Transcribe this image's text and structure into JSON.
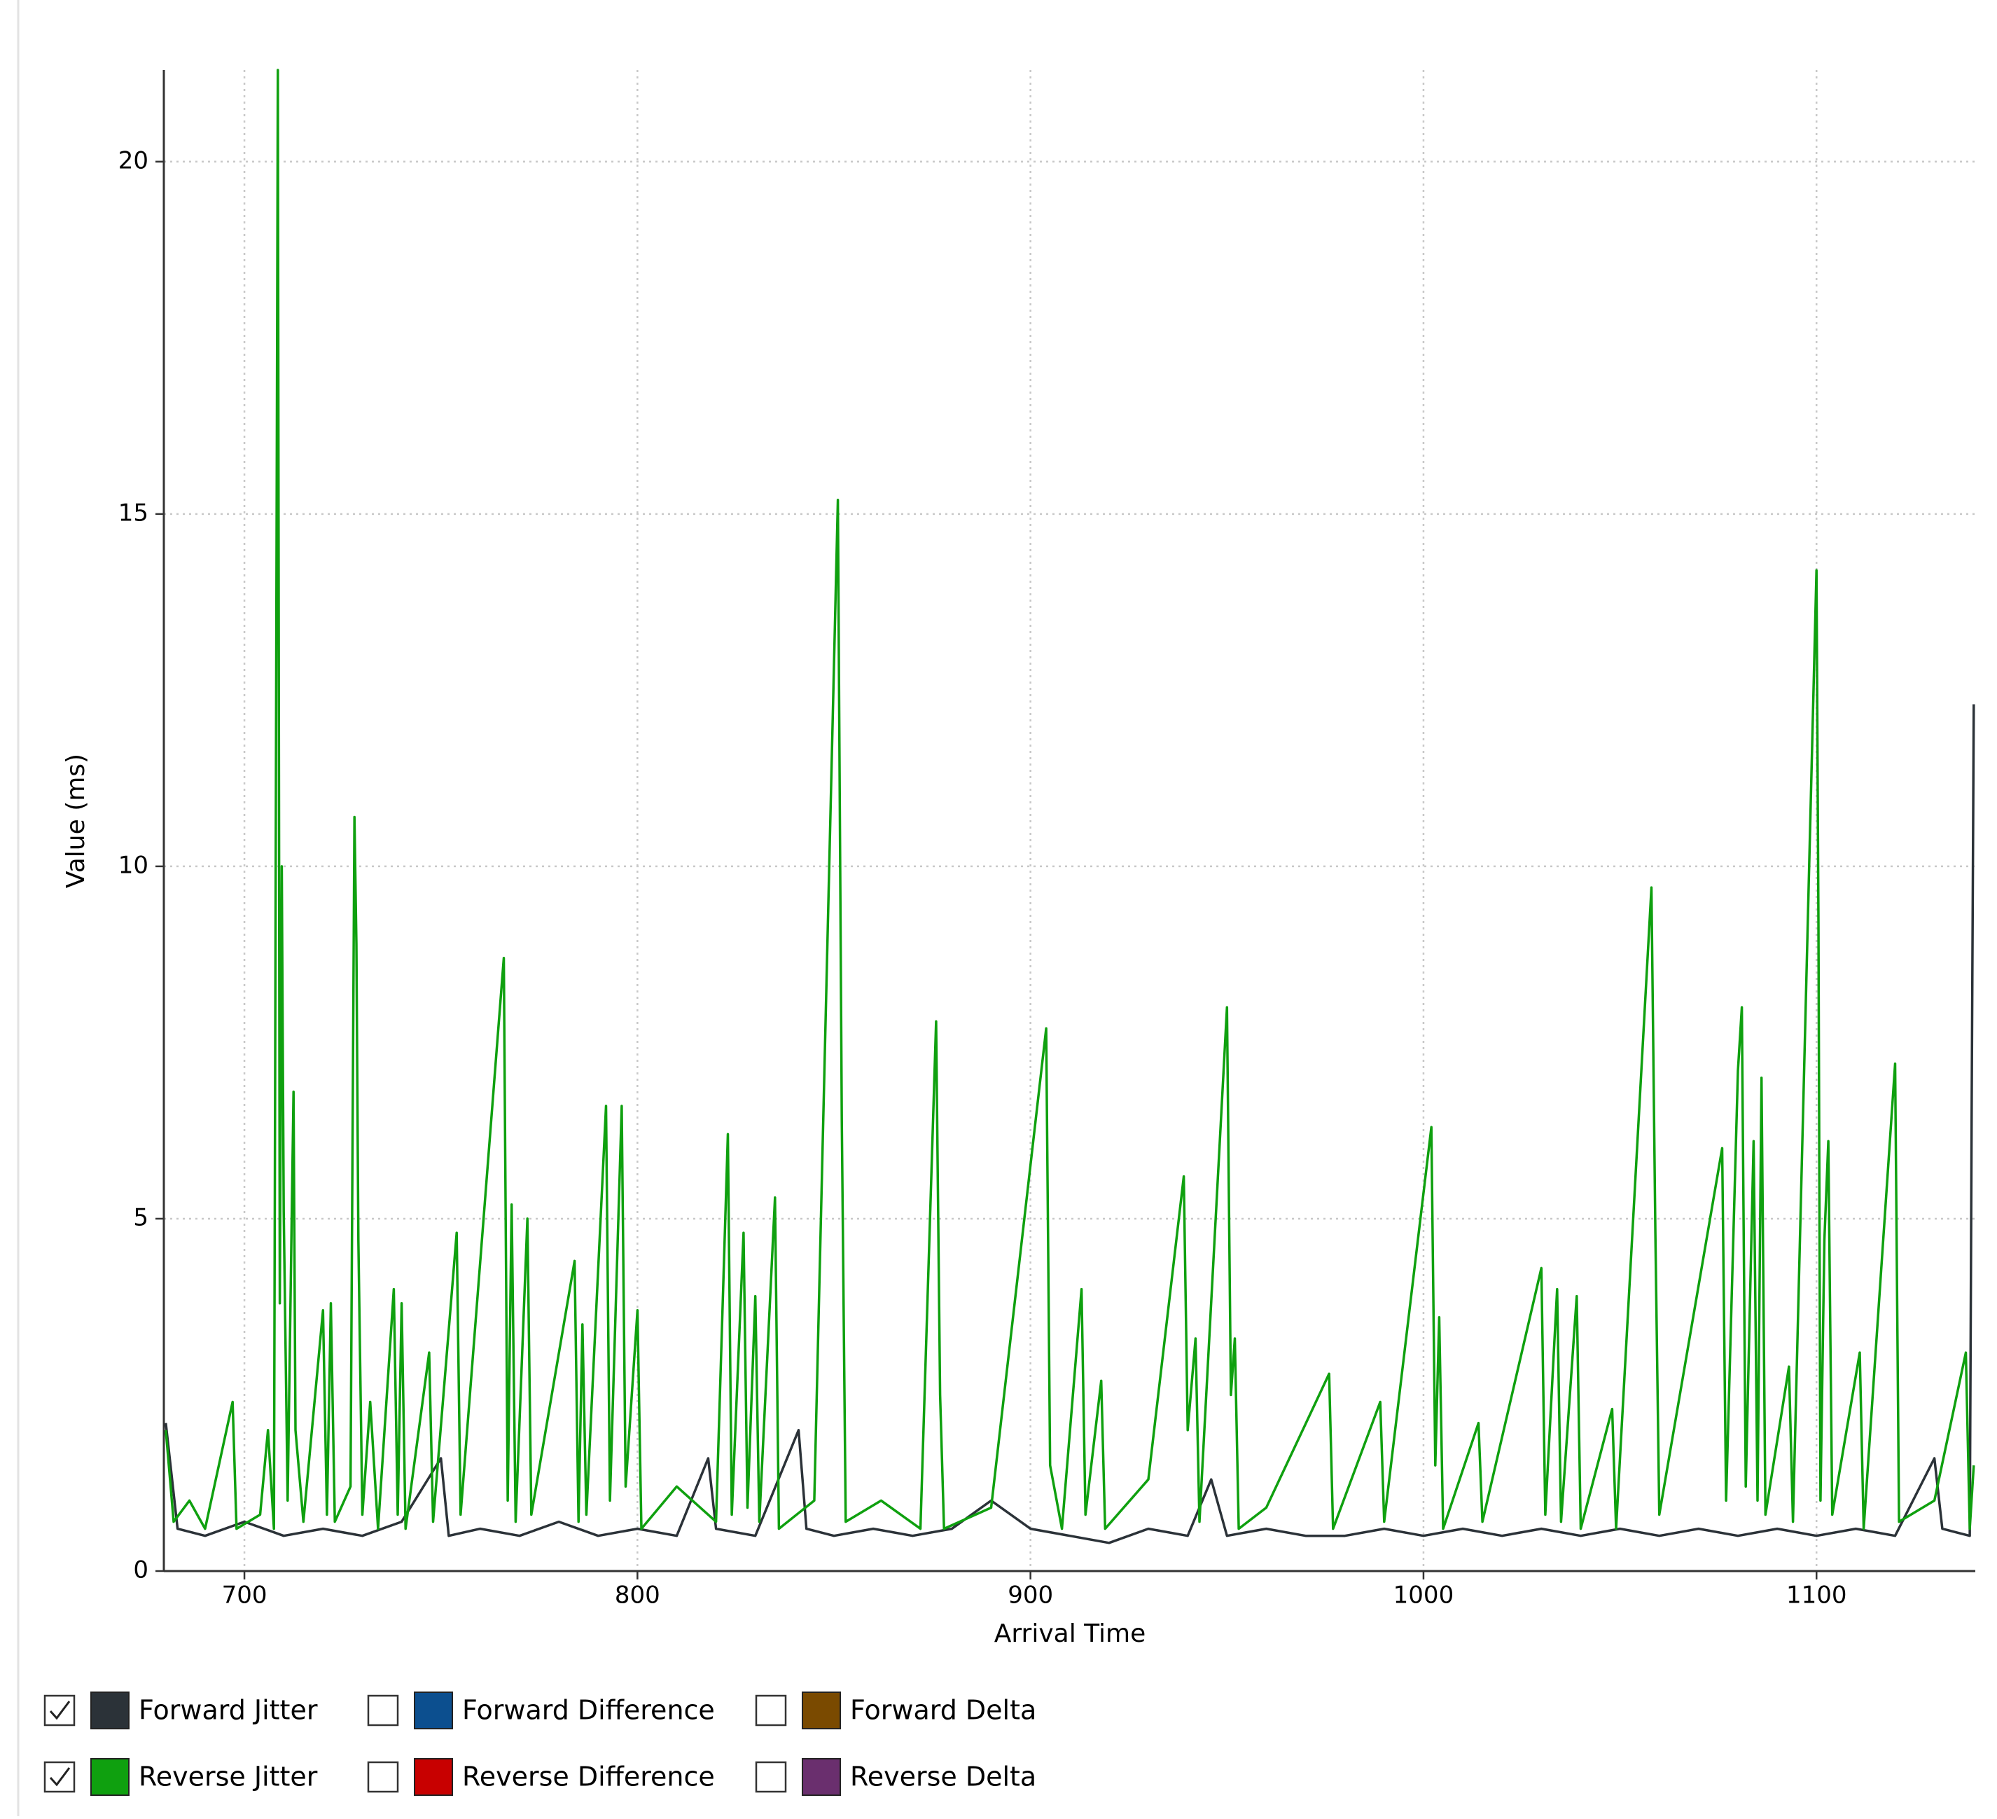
{
  "chart_data": {
    "type": "line",
    "x_label": "Arrival Time",
    "y_label": "Value (ms)",
    "xlim": [
      679.5,
      1140.4
    ],
    "ylim": [
      0,
      21.3
    ],
    "xticks": [
      700,
      800,
      900,
      1000,
      1100
    ],
    "yticks": [
      0,
      5,
      10,
      15,
      20
    ],
    "grid": true,
    "series": [
      {
        "name": "Forward Jitter",
        "color": "#2b3238",
        "checked": true,
        "x": [
          680,
          683,
          690,
          700,
          710,
          720,
          730,
          740,
          750,
          752,
          760,
          770,
          780,
          790,
          800,
          810,
          818,
          820,
          830,
          841,
          843,
          850,
          860,
          870,
          880,
          890,
          900,
          910,
          920,
          930,
          940,
          946,
          950,
          960,
          970,
          980,
          990,
          1000,
          1010,
          1020,
          1030,
          1040,
          1050,
          1060,
          1070,
          1080,
          1090,
          1100,
          1110,
          1120,
          1130,
          1132,
          1139,
          1139.5,
          1140
        ],
        "values": [
          2.1,
          0.6,
          0.5,
          0.7,
          0.5,
          0.6,
          0.5,
          0.7,
          1.6,
          0.5,
          0.6,
          0.5,
          0.7,
          0.5,
          0.6,
          0.5,
          1.6,
          0.6,
          0.5,
          2.0,
          0.6,
          0.5,
          0.6,
          0.5,
          0.6,
          1.0,
          0.6,
          0.5,
          0.4,
          0.6,
          0.5,
          1.3,
          0.5,
          0.6,
          0.5,
          0.5,
          0.6,
          0.5,
          0.6,
          0.5,
          0.6,
          0.5,
          0.6,
          0.5,
          0.6,
          0.5,
          0.6,
          0.5,
          0.6,
          0.5,
          1.6,
          0.6,
          0.5,
          6.7,
          12.3
        ]
      },
      {
        "name": "Reverse Jitter",
        "color": "#0fa00f",
        "checked": true,
        "x": [
          680,
          682,
          686,
          690,
          697,
          698,
          704,
          706,
          707.5,
          708.5,
          709,
          709.5,
          710,
          711,
          712.5,
          713,
          715,
          720,
          721,
          722,
          723,
          727,
          728,
          728.5,
          729,
          730,
          732,
          734,
          738,
          739,
          740,
          741,
          747,
          748,
          754,
          755,
          766,
          767,
          768,
          769,
          772,
          773,
          784,
          785,
          786,
          787,
          792,
          793,
          796,
          797,
          800,
          801,
          810,
          820,
          823,
          824,
          827,
          828,
          830,
          831,
          835,
          836,
          845,
          851,
          852,
          853,
          862,
          872,
          876,
          877,
          878,
          890,
          904,
          905,
          908,
          913,
          914,
          918,
          919,
          930,
          939,
          940,
          942,
          943,
          950,
          951,
          952,
          953,
          960,
          976,
          977,
          989,
          990,
          1002,
          1003,
          1004,
          1005,
          1014,
          1015,
          1030,
          1031,
          1034,
          1035,
          1039,
          1040,
          1048,
          1049,
          1058,
          1059,
          1060,
          1076,
          1077,
          1080,
          1081,
          1082,
          1084,
          1085,
          1086,
          1087,
          1093,
          1094,
          1100,
          1100.5,
          1101,
          1102,
          1103,
          1104,
          1111,
          1112,
          1120,
          1121,
          1130,
          1138,
          1139,
          1140
        ],
        "values": [
          2.0,
          0.7,
          1.0,
          0.6,
          2.4,
          0.6,
          0.8,
          2.0,
          0.6,
          21.3,
          3.8,
          10.0,
          5.1,
          1.0,
          6.8,
          2.0,
          0.7,
          3.7,
          0.8,
          3.8,
          0.7,
          1.2,
          10.7,
          8.9,
          4.7,
          0.8,
          2.4,
          0.6,
          4.0,
          0.8,
          3.8,
          0.6,
          3.1,
          0.7,
          4.8,
          0.8,
          8.7,
          1.0,
          5.2,
          0.7,
          5.0,
          0.8,
          4.4,
          0.7,
          3.5,
          0.8,
          6.6,
          1.0,
          6.6,
          1.2,
          3.7,
          0.6,
          1.2,
          0.7,
          6.2,
          0.8,
          4.8,
          0.9,
          3.9,
          0.7,
          5.3,
          0.6,
          1.0,
          15.2,
          6.4,
          0.7,
          1.0,
          0.6,
          7.8,
          2.5,
          0.6,
          0.9,
          7.7,
          1.5,
          0.6,
          4.0,
          0.8,
          2.7,
          0.6,
          1.3,
          5.6,
          2.0,
          3.3,
          0.7,
          8.0,
          2.5,
          3.3,
          0.6,
          0.9,
          2.8,
          0.6,
          2.4,
          0.7,
          6.3,
          1.5,
          3.6,
          0.6,
          2.1,
          0.7,
          4.3,
          0.8,
          4.0,
          0.7,
          3.9,
          0.6,
          2.3,
          0.6,
          9.7,
          4.8,
          0.8,
          6.0,
          1.0,
          7.1,
          8.0,
          1.2,
          6.1,
          1.0,
          7.0,
          0.8,
          2.9,
          0.7,
          14.2,
          9.2,
          1.0,
          4.7,
          6.1,
          0.8,
          3.1,
          0.6,
          7.2,
          0.7,
          1.0,
          3.1,
          0.6,
          1.5
        ]
      },
      {
        "name": "Forward Difference",
        "color": "#0c4f8f",
        "checked": false
      },
      {
        "name": "Reverse Difference",
        "color": "#c80000",
        "checked": false
      },
      {
        "name": "Forward Delta",
        "color": "#7a4a00",
        "checked": false
      },
      {
        "name": "Reverse Delta",
        "color": "#6a2f6e",
        "checked": false
      }
    ]
  }
}
